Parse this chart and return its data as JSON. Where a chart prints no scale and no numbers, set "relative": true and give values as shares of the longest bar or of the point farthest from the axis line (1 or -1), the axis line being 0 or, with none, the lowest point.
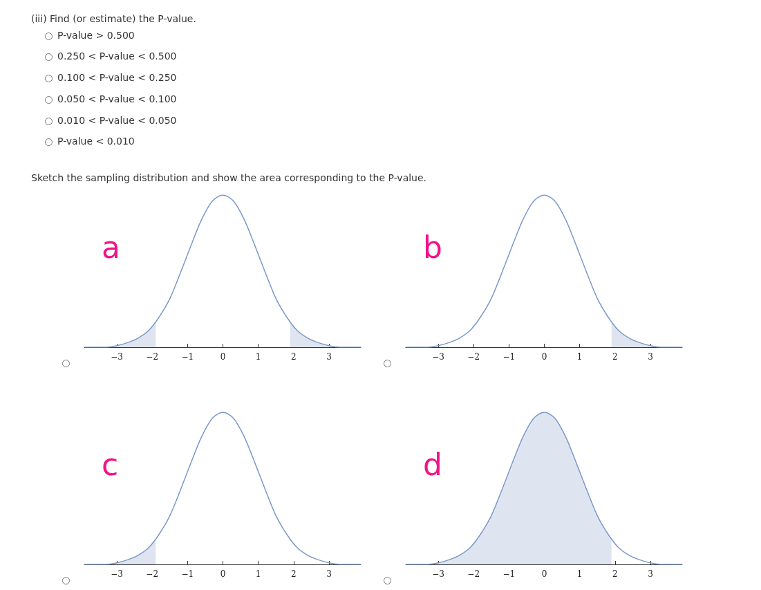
{
  "chart_data": [
    {
      "type": "other",
      "annotations": [
        "(iii) Find (or estimate) the P-value.",
        "P-value > 0.500",
        "0.250 < P-value < 0.500",
        "0.100 < P-value < 0.250",
        "0.050 < P-value < 0.100",
        "0.010 < P-value < 0.050",
        "P-value < 0.010",
        "Sketch the sampling distribution and show the area corresponding to the P-value."
      ]
    },
    {
      "type": "line",
      "title": "a",
      "relative": true,
      "xlim": [
        -3.92,
        3.9
      ],
      "xticks": [
        {
          "value": -3,
          "label": "−3"
        },
        {
          "value": -2,
          "label": "−2"
        },
        {
          "value": -1,
          "label": "−1"
        },
        0,
        1,
        2,
        3
      ],
      "series": [
        {
          "type": "area",
          "color": "#dfe5f0",
          "x": [
            -3.92,
            -3.6,
            -3.3,
            -3.0,
            -2.7,
            -2.4,
            -2.1,
            -1.9
          ],
          "values": [
            0,
            0,
            0,
            0.01,
            0.03,
            0.06,
            0.11,
            0.16
          ]
        },
        {
          "type": "area",
          "color": "#dfe5f0",
          "x": [
            1.9,
            2.1,
            2.4,
            2.7,
            3.0,
            3.3,
            3.6,
            3.9
          ],
          "values": [
            0.16,
            0.11,
            0.06,
            0.03,
            0.01,
            0,
            0,
            0
          ]
        },
        {
          "type": "line",
          "color": "#7b99c9",
          "x": [
            -3.9,
            -3.6,
            -3.3,
            -3.0,
            -2.7,
            -2.4,
            -2.1,
            -1.8,
            -1.5,
            -1.2,
            -0.9,
            -0.6,
            -0.3,
            0,
            0.3,
            0.6,
            0.9,
            1.2,
            1.5,
            1.8,
            2.1,
            2.4,
            2.7,
            3.0,
            3.3,
            3.6,
            3.9
          ],
          "values": [
            0,
            0,
            0,
            0.01,
            0.03,
            0.06,
            0.11,
            0.2,
            0.32,
            0.49,
            0.67,
            0.84,
            0.96,
            1,
            0.96,
            0.84,
            0.67,
            0.49,
            0.32,
            0.2,
            0.11,
            0.06,
            0.03,
            0.01,
            0,
            0,
            0
          ]
        }
      ]
    },
    {
      "type": "line",
      "title": "b",
      "relative": true,
      "xlim": [
        -3.92,
        3.9
      ],
      "xticks": [
        {
          "value": -3,
          "label": "−3"
        },
        {
          "value": -2,
          "label": "−2"
        },
        {
          "value": -1,
          "label": "−1"
        },
        0,
        1,
        2,
        3
      ],
      "series": [
        {
          "type": "area",
          "color": "#dfe5f0",
          "x": [
            1.9,
            2.1,
            2.4,
            2.7,
            3.0,
            3.3,
            3.6,
            3.9
          ],
          "values": [
            0.16,
            0.11,
            0.06,
            0.03,
            0.01,
            0,
            0,
            0
          ]
        },
        {
          "type": "line",
          "color": "#7b99c9",
          "x": [
            -3.9,
            -3.6,
            -3.3,
            -3.0,
            -2.7,
            -2.4,
            -2.1,
            -1.8,
            -1.5,
            -1.2,
            -0.9,
            -0.6,
            -0.3,
            0,
            0.3,
            0.6,
            0.9,
            1.2,
            1.5,
            1.8,
            2.1,
            2.4,
            2.7,
            3.0,
            3.3,
            3.6,
            3.9
          ],
          "values": [
            0,
            0,
            0,
            0.01,
            0.03,
            0.06,
            0.11,
            0.2,
            0.32,
            0.49,
            0.67,
            0.84,
            0.96,
            1,
            0.96,
            0.84,
            0.67,
            0.49,
            0.32,
            0.2,
            0.11,
            0.06,
            0.03,
            0.01,
            0,
            0,
            0
          ]
        }
      ]
    },
    {
      "type": "line",
      "title": "c",
      "relative": true,
      "xlim": [
        -3.92,
        3.9
      ],
      "xticks": [
        {
          "value": -3,
          "label": "−3"
        },
        {
          "value": -2,
          "label": "−2"
        },
        {
          "value": -1,
          "label": "−1"
        },
        0,
        1,
        2,
        3
      ],
      "series": [
        {
          "type": "area",
          "color": "#dfe5f0",
          "x": [
            -3.92,
            -3.6,
            -3.3,
            -3.0,
            -2.7,
            -2.4,
            -2.1,
            -1.9
          ],
          "values": [
            0,
            0,
            0,
            0.01,
            0.03,
            0.06,
            0.11,
            0.16
          ]
        },
        {
          "type": "line",
          "color": "#7b99c9",
          "x": [
            -3.9,
            -3.6,
            -3.3,
            -3.0,
            -2.7,
            -2.4,
            -2.1,
            -1.8,
            -1.5,
            -1.2,
            -0.9,
            -0.6,
            -0.3,
            0,
            0.3,
            0.6,
            0.9,
            1.2,
            1.5,
            1.8,
            2.1,
            2.4,
            2.7,
            3.0,
            3.3,
            3.6,
            3.9
          ],
          "values": [
            0,
            0,
            0,
            0.01,
            0.03,
            0.06,
            0.11,
            0.2,
            0.32,
            0.49,
            0.67,
            0.84,
            0.96,
            1,
            0.96,
            0.84,
            0.67,
            0.49,
            0.32,
            0.2,
            0.11,
            0.06,
            0.03,
            0.01,
            0,
            0,
            0
          ]
        }
      ]
    },
    {
      "type": "line",
      "title": "d",
      "relative": true,
      "xlim": [
        -3.92,
        3.9
      ],
      "xticks": [
        {
          "value": -3,
          "label": "−3"
        },
        {
          "value": -2,
          "label": "−2"
        },
        {
          "value": -1,
          "label": "−1"
        },
        0,
        1,
        2,
        3
      ],
      "series": [
        {
          "type": "area",
          "color": "#dfe5f0",
          "x": [
            -3.92,
            -3.6,
            -3.3,
            -3.0,
            -2.7,
            -2.4,
            -2.1,
            -1.8,
            -1.5,
            -1.2,
            -0.9,
            -0.6,
            -0.3,
            0,
            0.3,
            0.6,
            0.9,
            1.2,
            1.5,
            1.8,
            1.9
          ],
          "values": [
            0,
            0,
            0,
            0.01,
            0.03,
            0.06,
            0.11,
            0.2,
            0.32,
            0.49,
            0.67,
            0.84,
            0.96,
            1,
            0.96,
            0.84,
            0.67,
            0.49,
            0.32,
            0.2,
            0.16
          ]
        },
        {
          "type": "line",
          "color": "#7b99c9",
          "x": [
            -3.9,
            -3.6,
            -3.3,
            -3.0,
            -2.7,
            -2.4,
            -2.1,
            -1.8,
            -1.5,
            -1.2,
            -0.9,
            -0.6,
            -0.3,
            0,
            0.3,
            0.6,
            0.9,
            1.2,
            1.5,
            1.8,
            2.1,
            2.4,
            2.7,
            3.0,
            3.3,
            3.6,
            3.9
          ],
          "values": [
            0,
            0,
            0,
            0.01,
            0.03,
            0.06,
            0.11,
            0.2,
            0.32,
            0.49,
            0.67,
            0.84,
            0.96,
            1,
            0.96,
            0.84,
            0.67,
            0.49,
            0.32,
            0.2,
            0.11,
            0.06,
            0.03,
            0.01,
            0,
            0,
            0
          ]
        }
      ]
    }
  ]
}
